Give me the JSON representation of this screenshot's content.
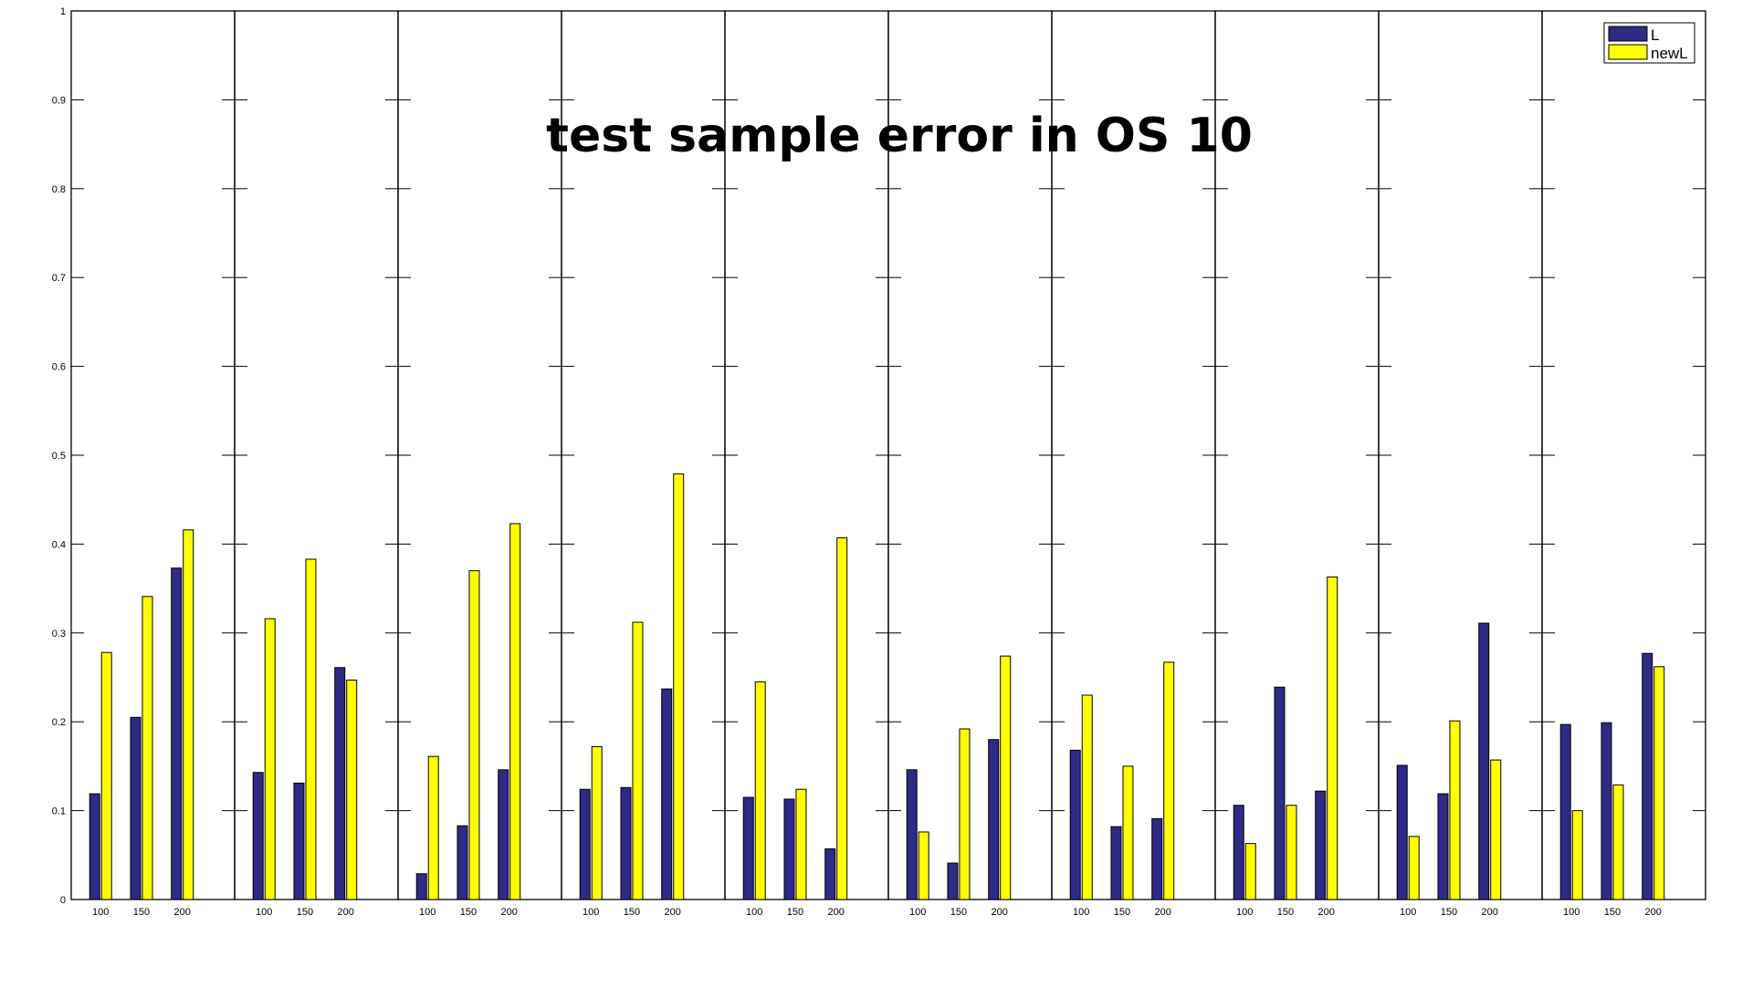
{
  "chart_data": {
    "type": "bar",
    "title": "test sample error in OS 10",
    "xlabel": "",
    "ylabel": "",
    "ylim": [
      0,
      1
    ],
    "yticks": [
      "0",
      "0.1",
      "0.2",
      "0.3",
      "0.4",
      "0.5",
      "0.6",
      "0.7",
      "0.8",
      "0.9",
      "1"
    ],
    "categories": [
      "100",
      "150",
      "200"
    ],
    "legend_position": "top-right",
    "grid": false,
    "colors": {
      "L": "#2e2a86",
      "newL": "#ffff00"
    },
    "legend": [
      "L",
      "newL"
    ],
    "panels": [
      {
        "L": [
          0.119,
          0.205,
          0.373
        ],
        "newL": [
          0.278,
          0.341,
          0.416
        ]
      },
      {
        "L": [
          0.143,
          0.131,
          0.261
        ],
        "newL": [
          0.316,
          0.383,
          0.247
        ]
      },
      {
        "L": [
          0.029,
          0.083,
          0.146
        ],
        "newL": [
          0.161,
          0.37,
          0.423
        ]
      },
      {
        "L": [
          0.124,
          0.126,
          0.237
        ],
        "newL": [
          0.172,
          0.312,
          0.479
        ]
      },
      {
        "L": [
          0.115,
          0.113,
          0.057
        ],
        "newL": [
          0.245,
          0.124,
          0.407
        ]
      },
      {
        "L": [
          0.146,
          0.041,
          0.18
        ],
        "newL": [
          0.076,
          0.192,
          0.274
        ]
      },
      {
        "L": [
          0.168,
          0.082,
          0.091
        ],
        "newL": [
          0.23,
          0.15,
          0.267
        ]
      },
      {
        "L": [
          0.106,
          0.239,
          0.122
        ],
        "newL": [
          0.063,
          0.106,
          0.363
        ]
      },
      {
        "L": [
          0.151,
          0.119,
          0.311
        ],
        "newL": [
          0.071,
          0.201,
          0.157
        ]
      },
      {
        "L": [
          0.197,
          0.199,
          0.277
        ],
        "newL": [
          0.1,
          0.129,
          0.262
        ]
      }
    ]
  }
}
